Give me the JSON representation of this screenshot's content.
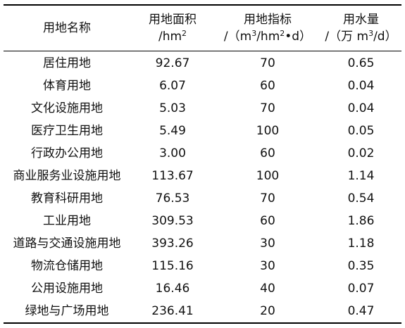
{
  "header": {
    "col_name": "用地名称",
    "col_area_title": "用地面积",
    "col_area_unit_pre": "/hm",
    "col_area_unit_sup": "2",
    "col_index_title": "用地指标",
    "col_index_unit_pre": "/（m",
    "col_index_unit_sup1": "3",
    "col_index_unit_mid": "/hm",
    "col_index_unit_sup2": "2",
    "col_index_unit_post": "•d）",
    "col_water_title": "用水量",
    "col_water_unit_pre": "/（万 m",
    "col_water_unit_sup": "3",
    "col_water_unit_post": "/d）"
  },
  "rows": [
    {
      "name": "居住用地",
      "area": "92.67",
      "index": "70",
      "water": "0.65"
    },
    {
      "name": "体育用地",
      "area": "6.07",
      "index": "60",
      "water": "0.04"
    },
    {
      "name": "文化设施用地",
      "area": "5.03",
      "index": "70",
      "water": "0.04"
    },
    {
      "name": "医疗卫生用地",
      "area": "5.49",
      "index": "100",
      "water": "0.05"
    },
    {
      "name": "行政办公用地",
      "area": "3.00",
      "index": "60",
      "water": "0.02"
    },
    {
      "name": "商业服务业设施用地",
      "area": "113.67",
      "index": "100",
      "water": "1.14"
    },
    {
      "name": "教育科研用地",
      "area": "76.53",
      "index": "70",
      "water": "0.54"
    },
    {
      "name": "工业用地",
      "area": "309.53",
      "index": "60",
      "water": "1.86"
    },
    {
      "name": "道路与交通设施用地",
      "area": "393.26",
      "index": "30",
      "water": "1.18"
    },
    {
      "name": "物流仓储用地",
      "area": "115.16",
      "index": "30",
      "water": "0.35"
    },
    {
      "name": "公用设施用地",
      "area": "16.46",
      "index": "40",
      "water": "0.07"
    },
    {
      "name": "绿地与广场用地",
      "area": "236.41",
      "index": "20",
      "water": "0.47"
    }
  ]
}
